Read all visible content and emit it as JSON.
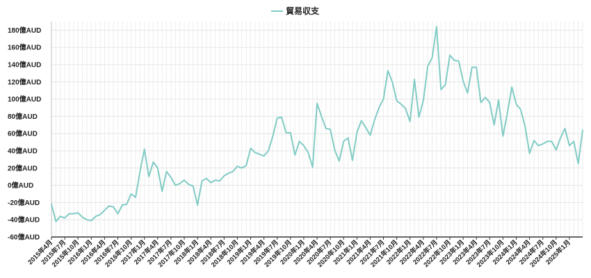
{
  "chart_data": {
    "type": "line",
    "title": "",
    "xlabel": "",
    "ylabel": "",
    "ylim": [
      -60,
      190
    ],
    "y_ticks": [
      -60,
      -40,
      -20,
      0,
      20,
      40,
      60,
      80,
      100,
      120,
      140,
      160,
      180
    ],
    "y_tick_labels": [
      "-60億AUD",
      "-40億AUD",
      "-20億AUD",
      "0億AUD",
      "20億AUD",
      "40億AUD",
      "60億AUD",
      "80億AUD",
      "100億AUD",
      "120億AUD",
      "140億AUD",
      "160億AUD",
      "180億AUD"
    ],
    "x_tick_labels": [
      "2015年4月",
      "2015年7月",
      "2015年10月",
      "2016年1月",
      "2016年4月",
      "2016年7月",
      "2016年10月",
      "2017年1月",
      "2017年4月",
      "2017年7月",
      "2017年10月",
      "2018年1月",
      "2018年4月",
      "2018年7月",
      "2018年10月",
      "2019年1月",
      "2019年4月",
      "2019年7月",
      "2019年10月",
      "2020年1月",
      "2020年4月",
      "2020年7月",
      "2020年10月",
      "2021年1月",
      "2021年4月",
      "2021年7月",
      "2021年10月",
      "2022年1月",
      "2022年4月",
      "2022年7月",
      "2022年10月",
      "2023年1月",
      "2023年4月",
      "2023年7月",
      "2023年10月",
      "2024年1月",
      "2024年4月",
      "2024年7月",
      "2024年10月",
      "2025年1月"
    ],
    "grid": true,
    "legend_position": "top",
    "series": [
      {
        "name": "貿易収支",
        "color": "#80cbc4",
        "values": [
          -22,
          -42,
          -36,
          -38,
          -33,
          -33,
          -32,
          -37,
          -40,
          -41,
          -36,
          -34,
          -29,
          -24,
          -25,
          -33,
          -23,
          -22,
          -10,
          -14,
          16,
          42,
          10,
          27,
          20,
          -7,
          16,
          9,
          0,
          2,
          6,
          1,
          -1,
          -23,
          5,
          8,
          3,
          6,
          5,
          11,
          14,
          16,
          22,
          20,
          23,
          43,
          38,
          36,
          34,
          40,
          57,
          78,
          79,
          61,
          61,
          35,
          51,
          46,
          38,
          21,
          95,
          80,
          66,
          65,
          41,
          28,
          51,
          55,
          29,
          61,
          75,
          67,
          58,
          76,
          90,
          100,
          133,
          120,
          98,
          94,
          89,
          74,
          123,
          79,
          98,
          138,
          148,
          184,
          111,
          117,
          151,
          145,
          144,
          121,
          107,
          137,
          137,
          96,
          102,
          96,
          70,
          99,
          57,
          84,
          114,
          94,
          88,
          68,
          37,
          52,
          46,
          48,
          51,
          51,
          41,
          55,
          66,
          46,
          51,
          25,
          64
        ]
      }
    ]
  }
}
